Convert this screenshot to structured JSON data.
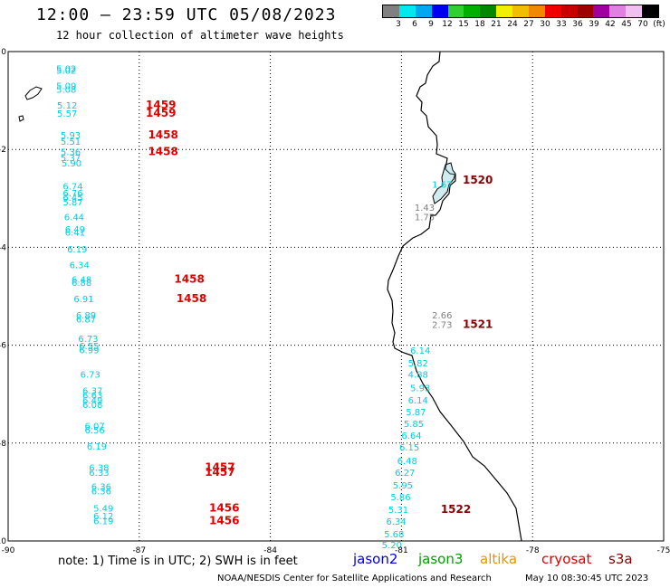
{
  "header": {
    "title": "12:00 – 23:59 UTC 05/08/2023",
    "subtitle": "12 hour collection of altimeter wave heights"
  },
  "legend": {
    "colors": [
      "#808080",
      "#00e8f0",
      "#00a8f0",
      "#0000f0",
      "#30d030",
      "#00b000",
      "#008800",
      "#f0f000",
      "#f0c000",
      "#f08800",
      "#f00000",
      "#c80000",
      "#a00000",
      "#a000a0",
      "#e080e0",
      "#f0c0f0",
      "#000000"
    ],
    "labels": [
      "3",
      "6",
      "9",
      "12",
      "15",
      "18",
      "21",
      "24",
      "27",
      "30",
      "33",
      "36",
      "39",
      "42",
      "45",
      "70",
      "(ft)"
    ]
  },
  "axes": {
    "x_ticks": [
      "-90",
      "-87",
      "-84",
      "-81",
      "-78",
      "-75"
    ],
    "y_ticks": [
      "0",
      "-2",
      "-4",
      "-6",
      "-8",
      "-10"
    ]
  },
  "tracks": [
    {
      "color": "#00d0e0",
      "points": [
        {
          "lon": -88.9,
          "lat": -0.42,
          "t": "5.02"
        },
        {
          "lon": -88.9,
          "lat": -0.45,
          "t": "5.02"
        },
        {
          "lon": -88.9,
          "lat": -0.77,
          "t": "5.09"
        },
        {
          "lon": -88.9,
          "lat": -0.84,
          "t": "5.08"
        },
        {
          "lon": -88.88,
          "lat": -1.16,
          "t": "5.12"
        },
        {
          "lon": -88.88,
          "lat": -1.33,
          "t": "5.57"
        },
        {
          "lon": -88.8,
          "lat": -1.77,
          "t": "5.93"
        },
        {
          "lon": -88.8,
          "lat": -1.9,
          "t": "5.51"
        },
        {
          "lon": -88.8,
          "lat": -2.12,
          "t": "5.36"
        },
        {
          "lon": -88.8,
          "lat": -2.24,
          "t": "5.37"
        },
        {
          "lon": -88.78,
          "lat": -2.35,
          "t": "5.90"
        },
        {
          "lon": -88.75,
          "lat": -2.82,
          "t": "6.74"
        },
        {
          "lon": -88.75,
          "lat": -2.96,
          "t": "6.76"
        },
        {
          "lon": -88.75,
          "lat": -3.05,
          "t": "6.45"
        },
        {
          "lon": -88.75,
          "lat": -3.14,
          "t": "5.87"
        },
        {
          "lon": -88.72,
          "lat": -3.45,
          "t": "6.44"
        },
        {
          "lon": -88.7,
          "lat": -3.7,
          "t": "6.49"
        },
        {
          "lon": -88.7,
          "lat": -3.76,
          "t": "6.41"
        },
        {
          "lon": -88.65,
          "lat": -4.1,
          "t": "6.19"
        },
        {
          "lon": -88.6,
          "lat": -4.43,
          "t": "6.34"
        },
        {
          "lon": -88.55,
          "lat": -4.72,
          "t": "6.48"
        },
        {
          "lon": -88.55,
          "lat": -4.79,
          "t": "6.88"
        },
        {
          "lon": -88.5,
          "lat": -5.12,
          "t": "6.91"
        },
        {
          "lon": -88.45,
          "lat": -5.45,
          "t": "6.89"
        },
        {
          "lon": -88.45,
          "lat": -5.54,
          "t": "6.87"
        },
        {
          "lon": -88.4,
          "lat": -5.93,
          "t": "6.73"
        },
        {
          "lon": -88.38,
          "lat": -6.08,
          "t": "6.55"
        },
        {
          "lon": -88.38,
          "lat": -6.16,
          "t": "6.99"
        },
        {
          "lon": -88.35,
          "lat": -6.66,
          "t": "6.73"
        },
        {
          "lon": -88.3,
          "lat": -7.0,
          "t": "6.37"
        },
        {
          "lon": -88.3,
          "lat": -7.09,
          "t": "6.63"
        },
        {
          "lon": -88.3,
          "lat": -7.19,
          "t": "6.49"
        },
        {
          "lon": -88.3,
          "lat": -7.28,
          "t": "6.08"
        },
        {
          "lon": -88.25,
          "lat": -7.72,
          "t": "6.07"
        },
        {
          "lon": -88.25,
          "lat": -7.8,
          "t": "6.56"
        },
        {
          "lon": -88.2,
          "lat": -8.13,
          "t": "6.19"
        },
        {
          "lon": -88.15,
          "lat": -8.57,
          "t": "6.38"
        },
        {
          "lon": -88.15,
          "lat": -8.67,
          "t": "6.33"
        },
        {
          "lon": -88.1,
          "lat": -8.96,
          "t": "6.36"
        },
        {
          "lon": -88.1,
          "lat": -9.05,
          "t": "6.36"
        },
        {
          "lon": -88.05,
          "lat": -9.4,
          "t": "5.49"
        },
        {
          "lon": -88.05,
          "lat": -9.56,
          "t": "6.12"
        },
        {
          "lon": -88.05,
          "lat": -9.66,
          "t": "6.19"
        },
        {
          "lon": -80.8,
          "lat": -6.17,
          "t": "6.14"
        },
        {
          "lon": -80.85,
          "lat": -6.43,
          "t": "5.82"
        },
        {
          "lon": -80.85,
          "lat": -6.66,
          "t": "4.88"
        },
        {
          "lon": -80.8,
          "lat": -6.94,
          "t": "5.93"
        },
        {
          "lon": -80.85,
          "lat": -7.19,
          "t": "6.14"
        },
        {
          "lon": -80.9,
          "lat": -7.43,
          "t": "5.87"
        },
        {
          "lon": -80.95,
          "lat": -7.67,
          "t": "5.85"
        },
        {
          "lon": -81.0,
          "lat": -7.91,
          "t": "6.64"
        },
        {
          "lon": -81.05,
          "lat": -8.15,
          "t": "6.15"
        },
        {
          "lon": -81.1,
          "lat": -8.43,
          "t": "6.48"
        },
        {
          "lon": -81.15,
          "lat": -8.67,
          "t": "6.27"
        },
        {
          "lon": -81.2,
          "lat": -8.93,
          "t": "5.95"
        },
        {
          "lon": -81.25,
          "lat": -9.17,
          "t": "5.86"
        },
        {
          "lon": -81.3,
          "lat": -9.43,
          "t": "5.31"
        },
        {
          "lon": -81.35,
          "lat": -9.67,
          "t": "6.34"
        },
        {
          "lon": -81.4,
          "lat": -9.93,
          "t": "5.68"
        },
        {
          "lon": -81.45,
          "lat": -10.15,
          "t": "5.20"
        },
        {
          "lon": -80.3,
          "lat": -2.78,
          "t": "1.67"
        }
      ]
    },
    {
      "color": "#808080",
      "points": [
        {
          "lon": -80.7,
          "lat": -3.25,
          "t": "1.43"
        },
        {
          "lon": -80.7,
          "lat": -3.45,
          "t": "1.75"
        },
        {
          "lon": -80.3,
          "lat": -5.45,
          "t": "2.66"
        },
        {
          "lon": -80.3,
          "lat": -5.65,
          "t": "2.73"
        }
      ]
    }
  ],
  "time_labels": [
    {
      "lon": -86.85,
      "lat": -1.16,
      "t": "1459",
      "color": "#e00000"
    },
    {
      "lon": -86.85,
      "lat": -1.33,
      "t": "1459",
      "color": "#e00000"
    },
    {
      "lon": -86.8,
      "lat": -1.77,
      "t": "1458",
      "color": "#e00000"
    },
    {
      "lon": -86.8,
      "lat": -2.12,
      "t": "1458",
      "color": "#e00000"
    },
    {
      "lon": -86.2,
      "lat": -4.72,
      "t": "1458",
      "color": "#e00000"
    },
    {
      "lon": -86.15,
      "lat": -5.12,
      "t": "1458",
      "color": "#e00000"
    },
    {
      "lon": -85.5,
      "lat": -8.57,
      "t": "1457",
      "color": "#e00000"
    },
    {
      "lon": -85.5,
      "lat": -8.67,
      "t": "1457",
      "color": "#e00000"
    },
    {
      "lon": -85.4,
      "lat": -9.4,
      "t": "1456",
      "color": "#e00000"
    },
    {
      "lon": -85.4,
      "lat": -9.66,
      "t": "1456",
      "color": "#e00000"
    },
    {
      "lon": -79.6,
      "lat": -2.7,
      "t": "1520",
      "color": "#8b0000"
    },
    {
      "lon": -79.6,
      "lat": -5.65,
      "t": "1521",
      "color": "#8b0000"
    },
    {
      "lon": -80.1,
      "lat": -9.43,
      "t": "1522",
      "color": "#8b0000"
    }
  ],
  "footer": {
    "note": "note:  1) Time is in UTC; 2) SWH is in feet",
    "missions": [
      {
        "name": "jason2",
        "color": "#0000e0"
      },
      {
        "name": "jason3",
        "color": "#00a000"
      },
      {
        "name": "altika",
        "color": "#f09000"
      },
      {
        "name": "cryosat",
        "color": "#e00000"
      },
      {
        "name": "s3a",
        "color": "#8b0000"
      }
    ],
    "credit": "NOAA/NESDIS Center for Satellite Applications and Research",
    "timestamp": "May 10 08:30:45 UTC 2023"
  }
}
